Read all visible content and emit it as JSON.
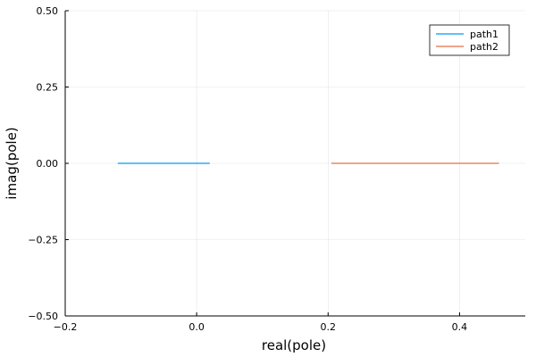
{
  "chart_data": {
    "type": "line",
    "xlabel": "real(pole)",
    "ylabel": "imag(pole)",
    "xlim": [
      -0.2,
      0.5
    ],
    "ylim": [
      -0.5,
      0.5
    ],
    "xticks": [
      -0.2,
      0.0,
      0.2,
      0.4
    ],
    "xtick_labels": [
      "−0.2",
      "0.0",
      "0.2",
      "0.4"
    ],
    "yticks": [
      -0.5,
      -0.25,
      0.0,
      0.25,
      0.5
    ],
    "ytick_labels": [
      "−0.50",
      "−0.25",
      "0.00",
      "0.25",
      "0.50"
    ],
    "grid": true,
    "legend_position": "top-right",
    "series": [
      {
        "name": "path1",
        "color": "#009AFA",
        "x": [
          -0.12,
          0.02
        ],
        "y": [
          0.0,
          0.0
        ]
      },
      {
        "name": "path2",
        "color": "#E26F46",
        "x": [
          0.205,
          0.46
        ],
        "y": [
          0.0,
          0.0
        ]
      }
    ]
  }
}
